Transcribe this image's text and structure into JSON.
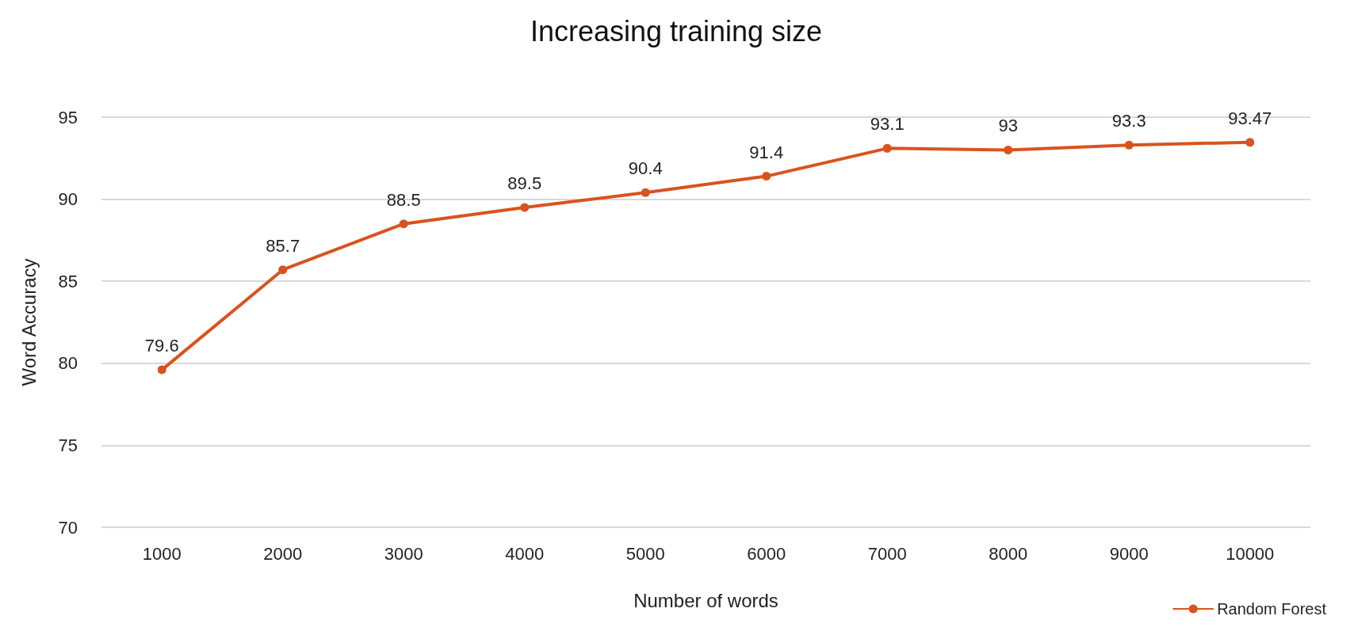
{
  "chart_data": {
    "type": "line",
    "title": "Increasing training size",
    "xlabel": "Number of words",
    "ylabel": "Word Accuracy",
    "categories": [
      "1000",
      "2000",
      "3000",
      "4000",
      "5000",
      "6000",
      "7000",
      "8000",
      "9000",
      "10000"
    ],
    "series": [
      {
        "name": "Random Forest",
        "color": "#d9531e",
        "values": [
          79.6,
          85.7,
          88.5,
          89.5,
          90.4,
          91.4,
          93.1,
          93,
          93.3,
          93.47
        ]
      }
    ],
    "ylim": [
      70,
      95
    ],
    "yticks": [
      70,
      75,
      80,
      85,
      90,
      95
    ],
    "grid": "y",
    "legend": "bottom right",
    "marker": "circle",
    "line_style": "solid",
    "data_labels": true
  }
}
